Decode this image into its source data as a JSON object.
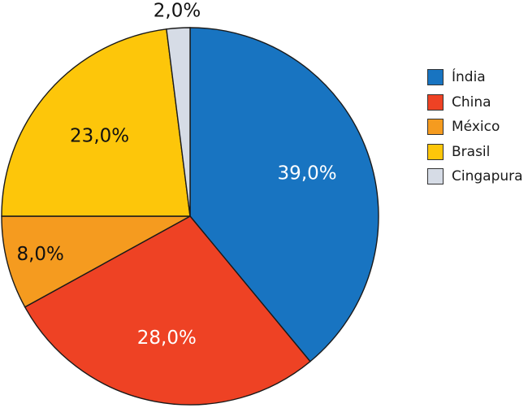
{
  "chart_data": {
    "type": "pie",
    "slices": [
      {
        "name": "Índia",
        "value": 39.0,
        "label": "39,0%",
        "color": "#1874c1",
        "label_color": "#ffffff"
      },
      {
        "name": "China",
        "value": 28.0,
        "label": "28,0%",
        "color": "#ee4224",
        "label_color": "#ffffff"
      },
      {
        "name": "México",
        "value": 8.0,
        "label": "8,0%",
        "color": "#f59b1f",
        "label_color": "#111111"
      },
      {
        "name": "Brasil",
        "value": 23.0,
        "label": "23,0%",
        "color": "#fdc60a",
        "label_color": "#111111"
      },
      {
        "name": "Cingapura",
        "value": 2.0,
        "label": "2,0%",
        "color": "#d6dce6",
        "label_color": "#111111"
      }
    ],
    "legend": {
      "position": "right"
    }
  }
}
